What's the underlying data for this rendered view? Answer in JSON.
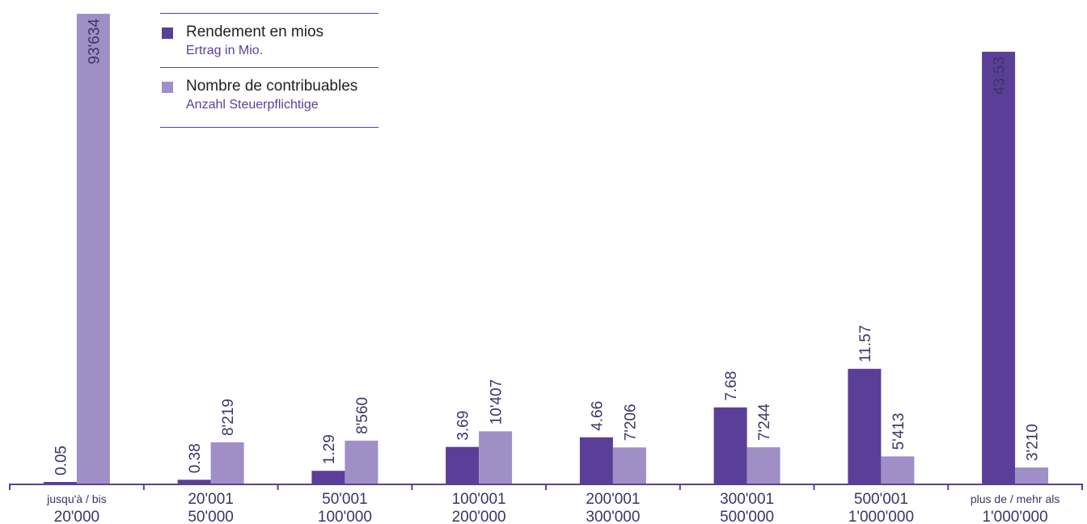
{
  "colors": {
    "rendement": "#5a3f98",
    "contribuables": "#a08fc6",
    "axis": "#5a3f98",
    "label": "#3e3466"
  },
  "legend": {
    "rendement_fr": "Rendement en mios",
    "rendement_de": "Ertrag in Mio.",
    "contribuables_fr": "Nombre de contribuables",
    "contribuables_de": "Anzahl Steuerpflichtige"
  },
  "chart_data": {
    "type": "bar",
    "categories": [
      {
        "top": "jusqu'à / bis",
        "bottom": "20'000"
      },
      {
        "top": "20'001",
        "bottom": "50'000"
      },
      {
        "top": "50'001",
        "bottom": "100'000"
      },
      {
        "top": "100'001",
        "bottom": "200'000"
      },
      {
        "top": "200'001",
        "bottom": "300'000"
      },
      {
        "top": "300'001",
        "bottom": "500'000"
      },
      {
        "top": "500'001",
        "bottom": "1'000'000"
      },
      {
        "top": "plus de / mehr als",
        "bottom": "1'000'000"
      }
    ],
    "series": [
      {
        "name": "Rendement en mios",
        "values": [
          0.05,
          0.38,
          1.29,
          3.69,
          4.66,
          7.68,
          11.57,
          43.53
        ],
        "labels": [
          "0.05",
          "0.38",
          "1.29",
          "3.69",
          "4.66",
          "7.68",
          "11.57",
          "43.53"
        ]
      },
      {
        "name": "Nombre de contribuables",
        "values": [
          93634,
          8219,
          8560,
          10407,
          7206,
          7244,
          5413,
          3210
        ],
        "labels": [
          "93'634",
          "8'219",
          "8'560",
          "10'407",
          "7'206",
          "7'244",
          "5'413",
          "3'210"
        ]
      }
    ],
    "grid": false,
    "legend_position": "top-left"
  }
}
